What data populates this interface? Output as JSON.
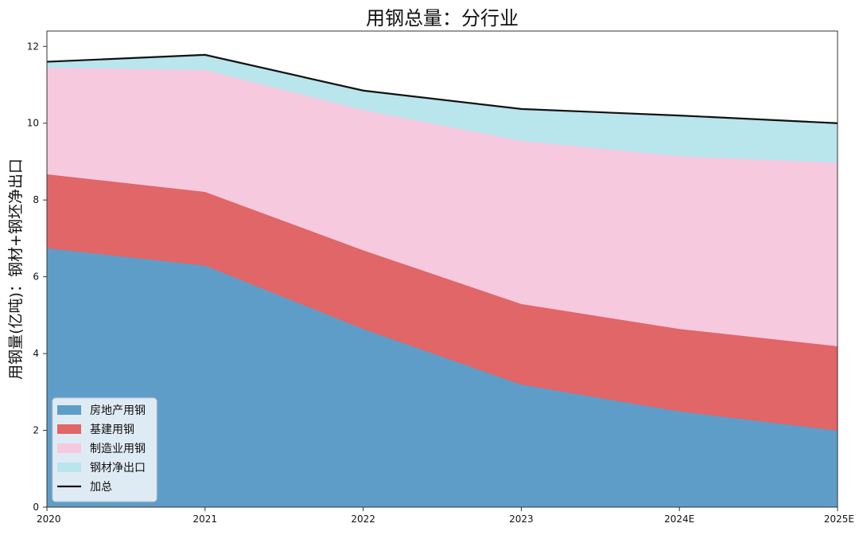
{
  "chart_data": {
    "type": "area",
    "stacked": true,
    "title": "用钢总量：分行业",
    "xlabel": "",
    "ylabel": "用钢量(亿吨)：钢材+钢坯净出口",
    "categories": [
      "2020",
      "2021",
      "2022",
      "2023",
      "2024E",
      "2025E"
    ],
    "ylim": [
      0,
      12.4
    ],
    "yticks": [
      0,
      2,
      4,
      6,
      8,
      10,
      12
    ],
    "grid": false,
    "legend_position": "lower-left",
    "series": [
      {
        "name": "房地产用钢",
        "color": "#5f9dc9",
        "values": [
          6.75,
          6.3,
          4.65,
          3.2,
          2.5,
          2.0
        ]
      },
      {
        "name": "基建用钢",
        "color": "#e06668",
        "values": [
          1.93,
          1.92,
          2.05,
          2.1,
          2.15,
          2.2
        ]
      },
      {
        "name": "制造业用钢",
        "color": "#f6c9df",
        "values": [
          2.77,
          3.18,
          3.65,
          4.25,
          4.5,
          4.78
        ]
      },
      {
        "name": "钢材净出口",
        "color": "#b9e5ec",
        "values": [
          0.15,
          0.38,
          0.5,
          0.82,
          1.05,
          1.02
        ]
      }
    ],
    "total": {
      "name": "加总",
      "color": "#111111",
      "values": [
        11.6,
        11.78,
        10.85,
        10.37,
        10.2,
        10.0
      ]
    }
  }
}
